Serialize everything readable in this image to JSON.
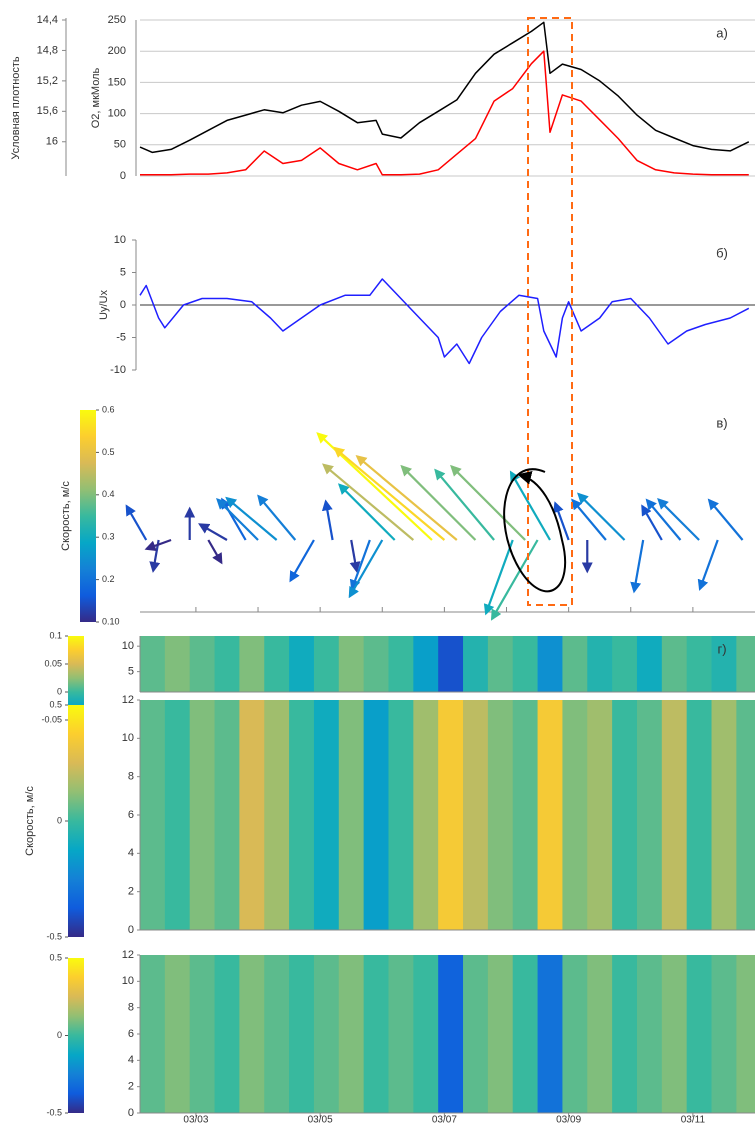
{
  "chart_data": [
    {
      "type": "line",
      "panel_label": "а)",
      "ylabel": "O2, мкМоль",
      "y2label": "Условная плотность",
      "x": [
        2.1,
        2.3,
        2.6,
        2.9,
        3.2,
        3.5,
        3.8,
        4.1,
        4.4,
        4.7,
        5.0,
        5.3,
        5.6,
        5.9,
        6.0,
        6.3,
        6.6,
        6.9,
        7.2,
        7.5,
        7.8,
        8.1,
        8.4,
        8.6,
        8.7,
        8.9,
        9.2,
        9.5,
        9.8,
        10.1,
        10.4,
        10.7,
        11.0,
        11.3,
        11.6,
        11.9
      ],
      "xlim": [
        2.1,
        12
      ],
      "ylim": [
        0,
        250
      ],
      "yticks": [
        0,
        50,
        100,
        150,
        200,
        250
      ],
      "y2lim": [
        16.45,
        14.4
      ],
      "y2ticks": [
        {
          "value": 14.4,
          "label": "14,4"
        },
        {
          "value": 14.8,
          "label": "14,8"
        },
        {
          "value": 15.2,
          "label": "15,2"
        },
        {
          "value": 15.6,
          "label": "15,6"
        },
        16
      ],
      "grid": true,
      "series": [
        {
          "color": "#000000",
          "axis": "y2",
          "values": [
            16.07,
            16.14,
            16.1,
            15.98,
            15.85,
            15.72,
            15.65,
            15.58,
            15.62,
            15.52,
            15.47,
            15.6,
            15.75,
            15.72,
            15.9,
            15.95,
            15.75,
            15.6,
            15.45,
            15.1,
            14.85,
            14.7,
            14.55,
            14.43,
            15.1,
            14.98,
            15.05,
            15.2,
            15.4,
            15.65,
            15.85,
            15.95,
            16.05,
            16.1,
            16.12,
            16.0
          ]
        },
        {
          "color": "#ff0000",
          "values": [
            2,
            2,
            2,
            3,
            3,
            5,
            10,
            40,
            20,
            25,
            45,
            20,
            10,
            20,
            2,
            2,
            3,
            10,
            35,
            60,
            120,
            140,
            180,
            200,
            70,
            130,
            120,
            90,
            60,
            25,
            10,
            5,
            3,
            2,
            2,
            2
          ]
        }
      ]
    },
    {
      "type": "line",
      "panel_label": "б)",
      "ylabel": "Uy/Ux",
      "x": [
        2.1,
        2.2,
        2.4,
        2.5,
        2.8,
        3.1,
        3.5,
        3.9,
        4.2,
        4.4,
        4.7,
        5.0,
        5.4,
        5.8,
        6.0,
        6.2,
        6.4,
        6.6,
        6.9,
        7.0,
        7.2,
        7.4,
        7.6,
        7.9,
        8.2,
        8.5,
        8.6,
        8.8,
        8.9,
        9.0,
        9.2,
        9.5,
        9.7,
        10.0,
        10.3,
        10.6,
        10.9,
        11.2,
        11.6,
        11.9
      ],
      "xlim": [
        2.1,
        12
      ],
      "ylim": [
        -10,
        10
      ],
      "yticks": [
        -10,
        -5,
        0,
        5,
        10
      ],
      "series": [
        {
          "color": "#1f1fff",
          "values": [
            1.5,
            3,
            -2,
            -3.5,
            0,
            1,
            1,
            0.5,
            -2,
            -4,
            -2,
            0,
            1.5,
            1.5,
            4,
            2,
            0,
            -2,
            -5,
            -8,
            -6,
            -9,
            -5,
            -1,
            1.5,
            1,
            -4,
            -8,
            -2,
            0.5,
            -4,
            -2,
            0.5,
            1,
            -2,
            -6,
            -4,
            -3,
            -2,
            -0.5
          ]
        }
      ]
    },
    {
      "type": "quiver",
      "panel_label": "в)",
      "clabel": "Скорость, м/с",
      "x": [
        2.2,
        2.4,
        2.6,
        2.9,
        3.2,
        3.5,
        3.8,
        4.0,
        4.3,
        4.6,
        4.9,
        5.2,
        5.5,
        5.8,
        6.0,
        6.2,
        6.5,
        6.8,
        7.0,
        7.2,
        7.5,
        7.8,
        8.1,
        8.3,
        8.5,
        8.7,
        9.0,
        9.3,
        9.6,
        9.9,
        10.2,
        10.5,
        10.8,
        11.1,
        11.4,
        11.8
      ],
      "values": [
        0.15,
        0.12,
        0.1,
        0.12,
        0.1,
        0.12,
        0.18,
        0.22,
        0.25,
        0.22,
        0.18,
        0.15,
        0.12,
        0.2,
        0.25,
        0.3,
        0.45,
        0.6,
        0.55,
        0.5,
        0.4,
        0.35,
        0.3,
        0.4,
        0.35,
        0.3,
        0.15,
        0.12,
        0.2,
        0.25,
        0.2,
        0.15,
        0.2,
        0.22,
        0.2,
        0.2
      ],
      "angles": [
        120,
        -100,
        200,
        90,
        -60,
        150,
        120,
        135,
        140,
        130,
        -120,
        100,
        -80,
        -110,
        -120,
        135,
        140,
        137,
        140,
        140,
        135,
        130,
        -110,
        135,
        -120,
        120,
        110,
        -90,
        130,
        135,
        -100,
        120,
        130,
        135,
        -110,
        130
      ],
      "xlim": [
        2.1,
        12
      ],
      "xticks": [
        3,
        4,
        5,
        6,
        7,
        8,
        9,
        10,
        11
      ],
      "clim": [
        0.1,
        0.6
      ],
      "cticks": [
        0.6,
        0.5,
        0.4,
        0.3,
        0.2,
        {
          "value": 0.1,
          "label": "0.10"
        }
      ],
      "colormap": [
        "#352a87",
        "#0f5cdd",
        "#1481d6",
        "#06a7c6",
        "#38b99e",
        "#92bf73",
        "#d9ba56",
        "#fcce2e",
        "#f9fb0e"
      ]
    },
    {
      "type": "heatmap",
      "panel_label": "г)",
      "x": [
        2.3,
        2.7,
        3.1,
        3.5,
        3.9,
        4.3,
        4.7,
        5.1,
        5.5,
        5.9,
        6.3,
        6.7,
        7.1,
        7.5,
        7.9,
        8.3,
        8.7,
        9.1,
        9.5,
        9.9,
        10.3,
        10.7,
        11.1,
        11.5,
        11.9
      ],
      "values": [
        0.01,
        0.02,
        0.01,
        0.0,
        0.02,
        0.0,
        -0.02,
        0.0,
        0.02,
        0.01,
        0.0,
        -0.03,
        -0.08,
        -0.01,
        0.01,
        0.0,
        -0.04,
        0.01,
        -0.01,
        0.0,
        -0.02,
        0.01,
        0.0,
        -0.01,
        0.01
      ],
      "xlim": [
        2.1,
        12
      ],
      "ylim": [
        1,
        12
      ],
      "yticks": [
        5,
        10
      ],
      "clim": [
        -0.1,
        0.1
      ],
      "cticks": [
        0.1,
        0.05,
        0,
        -0.05
      ],
      "colormap": [
        "#352a87",
        "#0f5cdd",
        "#1481d6",
        "#06a7c6",
        "#38b99e",
        "#92bf73",
        "#d9ba56",
        "#fcce2e",
        "#f9fb0e"
      ]
    },
    {
      "type": "heatmap",
      "clabel": "Скорость, м/с",
      "x": [
        2.3,
        2.7,
        3.1,
        3.5,
        3.9,
        4.3,
        4.7,
        5.1,
        5.5,
        5.9,
        6.3,
        6.7,
        7.1,
        7.5,
        7.9,
        8.3,
        8.7,
        9.1,
        9.5,
        9.9,
        10.3,
        10.7,
        11.1,
        11.5,
        11.9
      ],
      "values": [
        0.05,
        0.0,
        0.1,
        0.05,
        0.25,
        0.15,
        0.0,
        -0.1,
        0.1,
        -0.15,
        0.0,
        0.15,
        0.35,
        0.2,
        0.1,
        0.05,
        0.35,
        0.1,
        0.15,
        0.0,
        0.05,
        0.2,
        0.0,
        0.15,
        0.05
      ],
      "xlim": [
        2.1,
        12
      ],
      "ylim": [
        0,
        12
      ],
      "yticks": [
        0,
        2,
        4,
        6,
        8,
        10,
        12
      ],
      "clim": [
        -0.5,
        0.5
      ],
      "cticks": [
        0.5,
        0,
        -0.5
      ],
      "colormap": [
        "#352a87",
        "#0f5cdd",
        "#1481d6",
        "#06a7c6",
        "#38b99e",
        "#92bf73",
        "#d9ba56",
        "#fcce2e",
        "#f9fb0e"
      ]
    },
    {
      "type": "heatmap",
      "x": [
        2.3,
        2.7,
        3.1,
        3.5,
        3.9,
        4.3,
        4.7,
        5.1,
        5.5,
        5.9,
        6.3,
        6.7,
        7.1,
        7.5,
        7.9,
        8.3,
        8.7,
        9.1,
        9.5,
        9.9,
        10.3,
        10.7,
        11.1,
        11.5,
        11.9
      ],
      "values": [
        0.05,
        0.1,
        0.05,
        0.0,
        0.1,
        0.05,
        0.0,
        0.05,
        0.1,
        0.0,
        0.05,
        0.0,
        -0.35,
        0.05,
        0.1,
        0.0,
        -0.3,
        0.05,
        0.1,
        0.0,
        0.05,
        0.1,
        0.0,
        0.05,
        0.1
      ],
      "xlim": [
        2.1,
        12
      ],
      "ylim": [
        0,
        12
      ],
      "yticks": [
        0,
        2,
        4,
        6,
        8,
        10,
        12
      ],
      "xticks": [
        {
          "value": 3,
          "label": "03/03"
        },
        {
          "value": 5,
          "label": "03/05"
        },
        {
          "value": 7,
          "label": "03/07"
        },
        {
          "value": 9,
          "label": "03/09"
        },
        {
          "value": 11,
          "label": "03/11"
        }
      ],
      "clim": [
        -0.5,
        0.5
      ],
      "cticks": [
        0.5,
        0,
        -0.5
      ],
      "colormap": [
        "#352a87",
        "#0f5cdd",
        "#1481d6",
        "#06a7c6",
        "#38b99e",
        "#92bf73",
        "#d9ba56",
        "#fcce2e",
        "#f9fb0e"
      ]
    }
  ]
}
